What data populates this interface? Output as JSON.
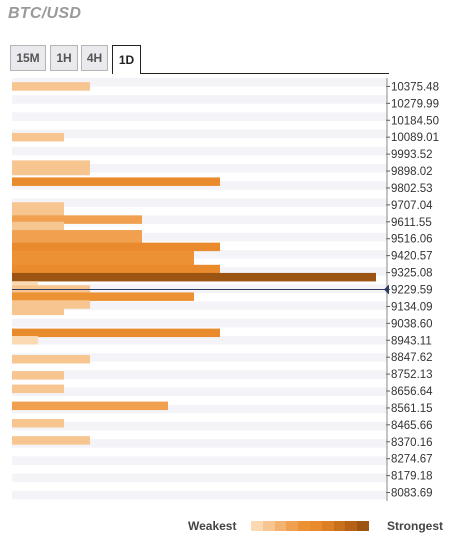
{
  "title": "BTC/USD",
  "tabs": [
    {
      "label": "15M",
      "active": false
    },
    {
      "label": "1H",
      "active": false
    },
    {
      "label": "4H",
      "active": false
    },
    {
      "label": "1D",
      "active": true
    }
  ],
  "chart_data": {
    "type": "bar",
    "orientation": "horizontal",
    "y_tick_labels": [
      "10375.48",
      "10279.99",
      "10184.50",
      "10089.01",
      "9993.52",
      "9898.02",
      "9802.53",
      "9707.04",
      "9611.55",
      "9516.06",
      "9420.57",
      "9325.08",
      "9229.59",
      "9134.09",
      "9038.60",
      "8943.11",
      "8847.62",
      "8752.13",
      "8656.64",
      "8561.15",
      "8465.66",
      "8370.16",
      "8274.67",
      "8179.18",
      "8083.69"
    ],
    "y_range": [
      8036,
      10423
    ],
    "current_price": 9229.59,
    "bars": [
      {
        "price": 10375.48,
        "strength": 3
      },
      {
        "price": 10089.01,
        "strength": 2
      },
      {
        "price": 9934.0,
        "strength": 3
      },
      {
        "price": 9898.02,
        "strength": 3
      },
      {
        "price": 9838.0,
        "strength": 8
      },
      {
        "price": 9698.0,
        "strength": 2
      },
      {
        "price": 9659.0,
        "strength": 2
      },
      {
        "price": 9624.0,
        "strength": 5
      },
      {
        "price": 9588.0,
        "strength": 2
      },
      {
        "price": 9541.0,
        "strength": 5
      },
      {
        "price": 9506.0,
        "strength": 5
      },
      {
        "price": 9470.0,
        "strength": 8
      },
      {
        "price": 9424.0,
        "strength": 7
      },
      {
        "price": 9380.0,
        "strength": 7
      },
      {
        "price": 9345.0,
        "strength": 8
      },
      {
        "price": 9299.0,
        "strength": 14
      },
      {
        "price": 9252.0,
        "strength": 1
      },
      {
        "price": 9229.59,
        "strength": 3
      },
      {
        "price": 9189.0,
        "strength": 7
      },
      {
        "price": 9145.0,
        "strength": 3
      },
      {
        "price": 9109.0,
        "strength": 2
      },
      {
        "price": 8985.0,
        "strength": 8
      },
      {
        "price": 8943.11,
        "strength": 1
      },
      {
        "price": 8836.0,
        "strength": 3
      },
      {
        "price": 8745.0,
        "strength": 2
      },
      {
        "price": 8669.0,
        "strength": 2
      },
      {
        "price": 8573.0,
        "strength": 6
      },
      {
        "price": 8475.0,
        "strength": 2
      },
      {
        "price": 8378.0,
        "strength": 3
      }
    ],
    "legend": {
      "weak_label": "Weakest",
      "strong_label": "Strongest"
    }
  },
  "colors": {
    "scale": [
      "#fbd9b3",
      "#f7c590",
      "#f3b26f",
      "#f0a04f",
      "#ed9234",
      "#e98a2c",
      "#dc7f25",
      "#c9701d",
      "#b56217",
      "#9c5412"
    ],
    "row_a": "#f3f3f8",
    "row_b": "#ffffff",
    "current_line": "#2d3b63"
  }
}
